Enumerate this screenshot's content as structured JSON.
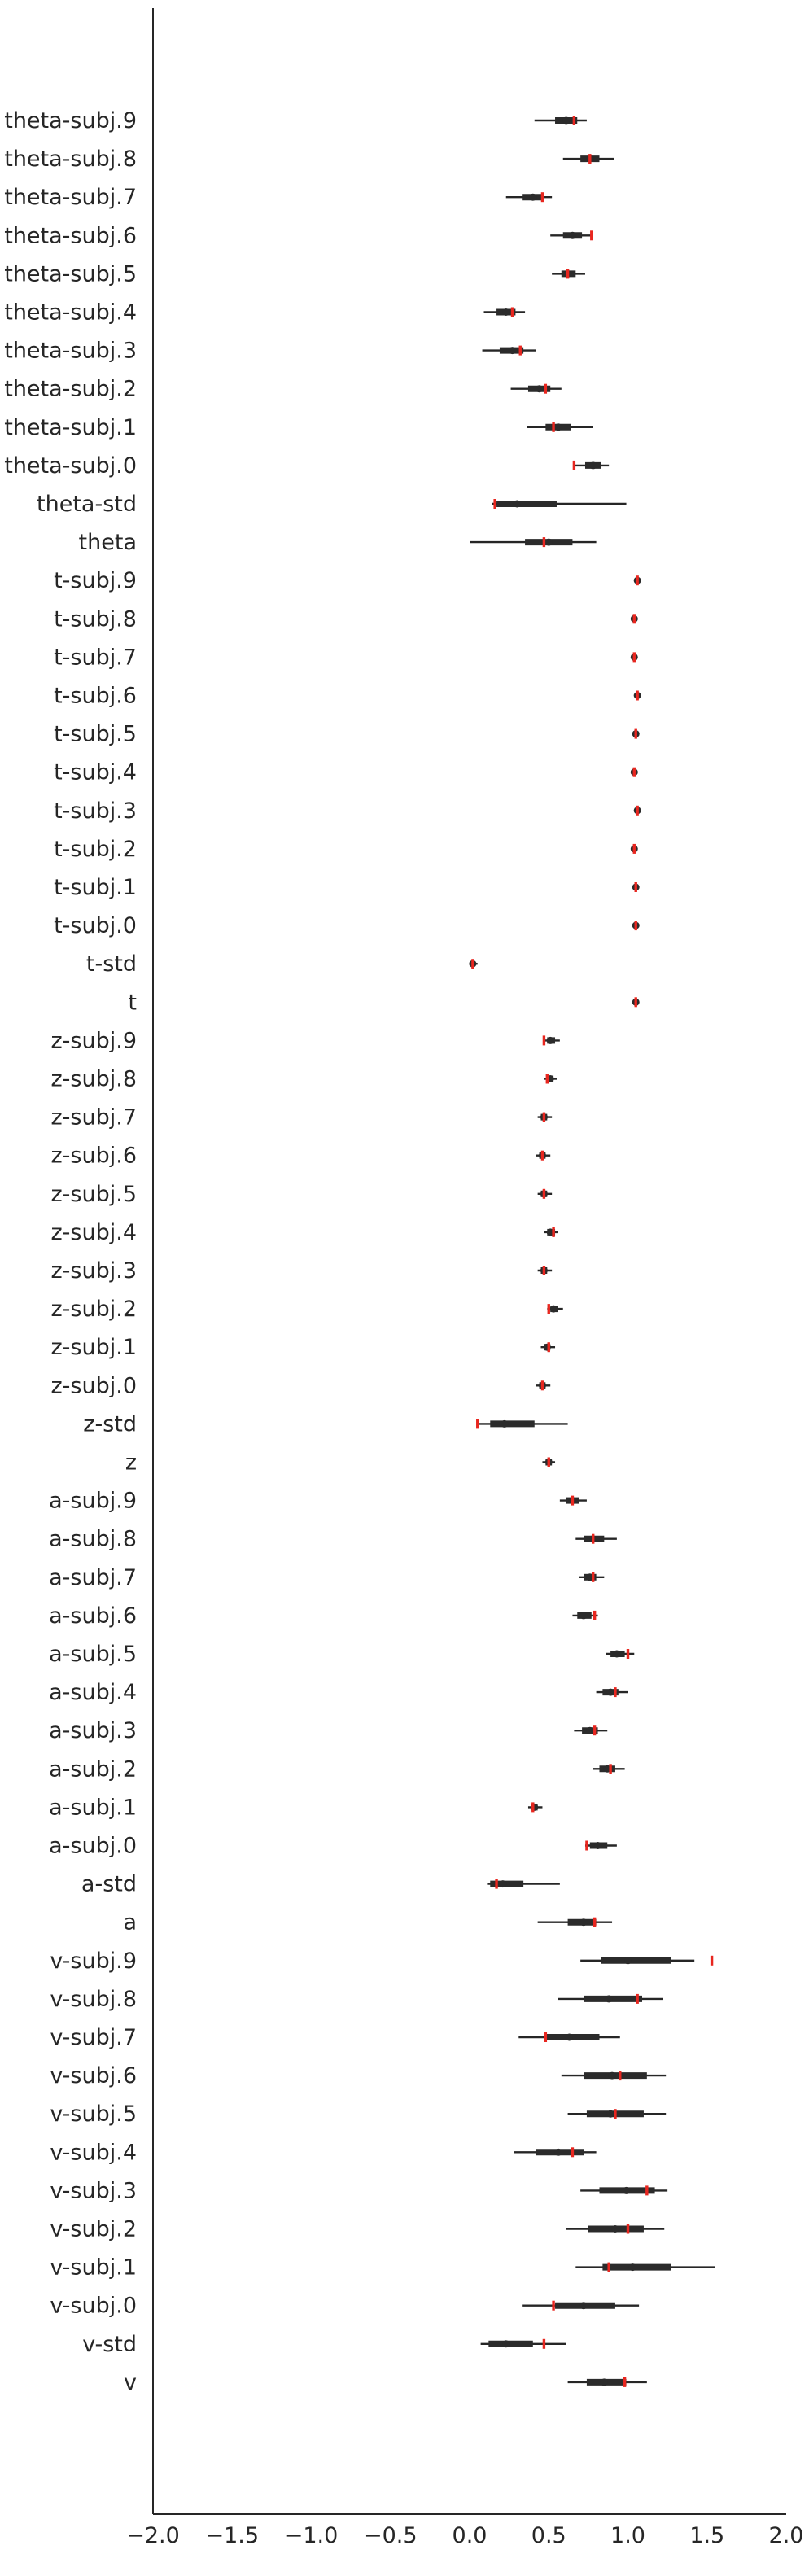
{
  "chart_data": {
    "type": "box",
    "orientation": "horizontal",
    "title": "",
    "xlabel": "",
    "ylabel": "",
    "xlim": [
      -2.0,
      2.0
    ],
    "xticks": [
      -2.0,
      -1.5,
      -1.0,
      -0.5,
      0.0,
      0.5,
      1.0,
      1.5,
      2.0
    ],
    "xtick_labels": [
      "−2.0",
      "−1.5",
      "−1.0",
      "−0.5",
      "0.0",
      "0.5",
      "1.0",
      "1.5",
      "2.0"
    ],
    "grid": false,
    "colors": {
      "box": "#2b2b2b",
      "true_value": "#e8261f",
      "axis": "#262626"
    },
    "parameters": [
      {
        "name": "theta-subj.9",
        "whisker_low": 0.41,
        "q1": 0.54,
        "median": 0.61,
        "q3": 0.68,
        "whisker_high": 0.74,
        "true_value": 0.66
      },
      {
        "name": "theta-subj.8",
        "whisker_low": 0.59,
        "q1": 0.7,
        "median": 0.76,
        "q3": 0.82,
        "whisker_high": 0.91,
        "true_value": 0.76
      },
      {
        "name": "theta-subj.7",
        "whisker_low": 0.23,
        "q1": 0.33,
        "median": 0.4,
        "q3": 0.46,
        "whisker_high": 0.52,
        "true_value": 0.46
      },
      {
        "name": "theta-subj.6",
        "whisker_low": 0.51,
        "q1": 0.59,
        "median": 0.65,
        "q3": 0.71,
        "whisker_high": 0.78,
        "true_value": 0.77
      },
      {
        "name": "theta-subj.5",
        "whisker_low": 0.52,
        "q1": 0.58,
        "median": 0.62,
        "q3": 0.67,
        "whisker_high": 0.73,
        "true_value": 0.62
      },
      {
        "name": "theta-subj.4",
        "whisker_low": 0.09,
        "q1": 0.17,
        "median": 0.23,
        "q3": 0.29,
        "whisker_high": 0.35,
        "true_value": 0.27
      },
      {
        "name": "theta-subj.3",
        "whisker_low": 0.08,
        "q1": 0.19,
        "median": 0.27,
        "q3": 0.34,
        "whisker_high": 0.42,
        "true_value": 0.32
      },
      {
        "name": "theta-subj.2",
        "whisker_low": 0.26,
        "q1": 0.37,
        "median": 0.44,
        "q3": 0.51,
        "whisker_high": 0.58,
        "true_value": 0.48
      },
      {
        "name": "theta-subj.1",
        "whisker_low": 0.36,
        "q1": 0.48,
        "median": 0.56,
        "q3": 0.64,
        "whisker_high": 0.78,
        "true_value": 0.53
      },
      {
        "name": "theta-subj.0",
        "whisker_low": 0.66,
        "q1": 0.73,
        "median": 0.78,
        "q3": 0.83,
        "whisker_high": 0.88,
        "true_value": 0.66
      },
      {
        "name": "theta-std",
        "whisker_low": 0.14,
        "q1": 0.17,
        "median": 0.3,
        "q3": 0.55,
        "whisker_high": 0.99,
        "true_value": 0.16
      },
      {
        "name": "theta",
        "whisker_low": 0.0,
        "q1": 0.35,
        "median": 0.5,
        "q3": 0.65,
        "whisker_high": 0.8,
        "true_value": 0.47
      },
      {
        "name": "t-subj.9",
        "whisker_low": 1.04,
        "q1": 1.05,
        "median": 1.06,
        "q3": 1.07,
        "whisker_high": 1.08,
        "true_value": 1.06
      },
      {
        "name": "t-subj.8",
        "whisker_low": 1.02,
        "q1": 1.03,
        "median": 1.04,
        "q3": 1.05,
        "whisker_high": 1.06,
        "true_value": 1.04
      },
      {
        "name": "t-subj.7",
        "whisker_low": 1.02,
        "q1": 1.03,
        "median": 1.04,
        "q3": 1.05,
        "whisker_high": 1.06,
        "true_value": 1.04
      },
      {
        "name": "t-subj.6",
        "whisker_low": 1.04,
        "q1": 1.05,
        "median": 1.06,
        "q3": 1.07,
        "whisker_high": 1.08,
        "true_value": 1.06
      },
      {
        "name": "t-subj.5",
        "whisker_low": 1.03,
        "q1": 1.04,
        "median": 1.05,
        "q3": 1.06,
        "whisker_high": 1.07,
        "true_value": 1.05
      },
      {
        "name": "t-subj.4",
        "whisker_low": 1.02,
        "q1": 1.03,
        "median": 1.04,
        "q3": 1.05,
        "whisker_high": 1.06,
        "true_value": 1.04
      },
      {
        "name": "t-subj.3",
        "whisker_low": 1.04,
        "q1": 1.05,
        "median": 1.06,
        "q3": 1.07,
        "whisker_high": 1.08,
        "true_value": 1.06
      },
      {
        "name": "t-subj.2",
        "whisker_low": 1.02,
        "q1": 1.03,
        "median": 1.04,
        "q3": 1.05,
        "whisker_high": 1.06,
        "true_value": 1.04
      },
      {
        "name": "t-subj.1",
        "whisker_low": 1.03,
        "q1": 1.04,
        "median": 1.05,
        "q3": 1.06,
        "whisker_high": 1.07,
        "true_value": 1.05
      },
      {
        "name": "t-subj.0",
        "whisker_low": 1.03,
        "q1": 1.04,
        "median": 1.05,
        "q3": 1.06,
        "whisker_high": 1.07,
        "true_value": 1.05
      },
      {
        "name": "t-std",
        "whisker_low": 0.0,
        "q1": 0.01,
        "median": 0.02,
        "q3": 0.03,
        "whisker_high": 0.05,
        "true_value": 0.02
      },
      {
        "name": "t",
        "whisker_low": 1.03,
        "q1": 1.04,
        "median": 1.05,
        "q3": 1.06,
        "whisker_high": 1.07,
        "true_value": 1.05
      },
      {
        "name": "z-subj.9",
        "whisker_low": 0.47,
        "q1": 0.49,
        "median": 0.51,
        "q3": 0.54,
        "whisker_high": 0.57,
        "true_value": 0.47
      },
      {
        "name": "z-subj.8",
        "whisker_low": 0.47,
        "q1": 0.49,
        "median": 0.51,
        "q3": 0.53,
        "whisker_high": 0.55,
        "true_value": 0.49
      },
      {
        "name": "z-subj.7",
        "whisker_low": 0.43,
        "q1": 0.45,
        "median": 0.47,
        "q3": 0.49,
        "whisker_high": 0.52,
        "true_value": 0.47
      },
      {
        "name": "z-subj.6",
        "whisker_low": 0.42,
        "q1": 0.44,
        "median": 0.46,
        "q3": 0.48,
        "whisker_high": 0.51,
        "true_value": 0.46
      },
      {
        "name": "z-subj.5",
        "whisker_low": 0.43,
        "q1": 0.45,
        "median": 0.47,
        "q3": 0.49,
        "whisker_high": 0.52,
        "true_value": 0.47
      },
      {
        "name": "z-subj.4",
        "whisker_low": 0.47,
        "q1": 0.49,
        "median": 0.51,
        "q3": 0.54,
        "whisker_high": 0.56,
        "true_value": 0.53
      },
      {
        "name": "z-subj.3",
        "whisker_low": 0.43,
        "q1": 0.45,
        "median": 0.47,
        "q3": 0.49,
        "whisker_high": 0.52,
        "true_value": 0.47
      },
      {
        "name": "z-subj.2",
        "whisker_low": 0.49,
        "q1": 0.51,
        "median": 0.53,
        "q3": 0.56,
        "whisker_high": 0.59,
        "true_value": 0.5
      },
      {
        "name": "z-subj.1",
        "whisker_low": 0.45,
        "q1": 0.47,
        "median": 0.49,
        "q3": 0.51,
        "whisker_high": 0.54,
        "true_value": 0.5
      },
      {
        "name": "z-subj.0",
        "whisker_low": 0.42,
        "q1": 0.44,
        "median": 0.46,
        "q3": 0.48,
        "whisker_high": 0.51,
        "true_value": 0.46
      },
      {
        "name": "z-std",
        "whisker_low": 0.06,
        "q1": 0.13,
        "median": 0.22,
        "q3": 0.41,
        "whisker_high": 0.62,
        "true_value": 0.05
      },
      {
        "name": "z",
        "whisker_low": 0.46,
        "q1": 0.48,
        "median": 0.5,
        "q3": 0.52,
        "whisker_high": 0.54,
        "true_value": 0.5
      },
      {
        "name": "a-subj.9",
        "whisker_low": 0.57,
        "q1": 0.61,
        "median": 0.65,
        "q3": 0.69,
        "whisker_high": 0.74,
        "true_value": 0.65
      },
      {
        "name": "a-subj.8",
        "whisker_low": 0.67,
        "q1": 0.72,
        "median": 0.78,
        "q3": 0.85,
        "whisker_high": 0.93,
        "true_value": 0.78
      },
      {
        "name": "a-subj.7",
        "whisker_low": 0.69,
        "q1": 0.72,
        "median": 0.76,
        "q3": 0.8,
        "whisker_high": 0.85,
        "true_value": 0.78
      },
      {
        "name": "a-subj.6",
        "whisker_low": 0.65,
        "q1": 0.68,
        "median": 0.72,
        "q3": 0.77,
        "whisker_high": 0.81,
        "true_value": 0.79
      },
      {
        "name": "a-subj.5",
        "whisker_low": 0.86,
        "q1": 0.89,
        "median": 0.93,
        "q3": 0.98,
        "whisker_high": 1.04,
        "true_value": 1.0
      },
      {
        "name": "a-subj.4",
        "whisker_low": 0.8,
        "q1": 0.84,
        "median": 0.89,
        "q3": 0.94,
        "whisker_high": 1.0,
        "true_value": 0.92
      },
      {
        "name": "a-subj.3",
        "whisker_low": 0.66,
        "q1": 0.71,
        "median": 0.76,
        "q3": 0.81,
        "whisker_high": 0.87,
        "true_value": 0.79
      },
      {
        "name": "a-subj.2",
        "whisker_low": 0.78,
        "q1": 0.82,
        "median": 0.87,
        "q3": 0.92,
        "whisker_high": 0.98,
        "true_value": 0.89
      },
      {
        "name": "a-subj.1",
        "whisker_low": 0.37,
        "q1": 0.39,
        "median": 0.41,
        "q3": 0.43,
        "whisker_high": 0.46,
        "true_value": 0.4
      },
      {
        "name": "a-subj.0",
        "whisker_low": 0.73,
        "q1": 0.76,
        "median": 0.81,
        "q3": 0.87,
        "whisker_high": 0.93,
        "true_value": 0.74
      },
      {
        "name": "a-std",
        "whisker_low": 0.11,
        "q1": 0.13,
        "median": 0.21,
        "q3": 0.34,
        "whisker_high": 0.57,
        "true_value": 0.17
      },
      {
        "name": "a",
        "whisker_low": 0.43,
        "q1": 0.62,
        "median": 0.72,
        "q3": 0.8,
        "whisker_high": 0.9,
        "true_value": 0.79
      },
      {
        "name": "v-subj.9",
        "whisker_low": 0.7,
        "q1": 0.83,
        "median": 1.0,
        "q3": 1.27,
        "whisker_high": 1.42,
        "true_value": 1.53
      },
      {
        "name": "v-subj.8",
        "whisker_low": 0.56,
        "q1": 0.72,
        "median": 0.88,
        "q3": 1.09,
        "whisker_high": 1.22,
        "true_value": 1.06
      },
      {
        "name": "v-subj.7",
        "whisker_low": 0.31,
        "q1": 0.47,
        "median": 0.63,
        "q3": 0.82,
        "whisker_high": 0.95,
        "true_value": 0.48
      },
      {
        "name": "v-subj.6",
        "whisker_low": 0.58,
        "q1": 0.72,
        "median": 0.9,
        "q3": 1.12,
        "whisker_high": 1.24,
        "true_value": 0.95
      },
      {
        "name": "v-subj.5",
        "whisker_low": 0.62,
        "q1": 0.74,
        "median": 0.89,
        "q3": 1.1,
        "whisker_high": 1.24,
        "true_value": 0.92
      },
      {
        "name": "v-subj.4",
        "whisker_low": 0.28,
        "q1": 0.42,
        "median": 0.56,
        "q3": 0.72,
        "whisker_high": 0.8,
        "true_value": 0.65
      },
      {
        "name": "v-subj.3",
        "whisker_low": 0.7,
        "q1": 0.82,
        "median": 0.99,
        "q3": 1.17,
        "whisker_high": 1.25,
        "true_value": 1.12
      },
      {
        "name": "v-subj.2",
        "whisker_low": 0.61,
        "q1": 0.75,
        "median": 0.92,
        "q3": 1.1,
        "whisker_high": 1.23,
        "true_value": 1.0
      },
      {
        "name": "v-subj.1",
        "whisker_low": 0.67,
        "q1": 0.84,
        "median": 1.03,
        "q3": 1.27,
        "whisker_high": 1.55,
        "true_value": 0.88
      },
      {
        "name": "v-subj.0",
        "whisker_low": 0.33,
        "q1": 0.54,
        "median": 0.72,
        "q3": 0.92,
        "whisker_high": 1.07,
        "true_value": 0.53
      },
      {
        "name": "v-std",
        "whisker_low": 0.07,
        "q1": 0.12,
        "median": 0.23,
        "q3": 0.4,
        "whisker_high": 0.61,
        "true_value": 0.47
      },
      {
        "name": "v",
        "whisker_low": 0.62,
        "q1": 0.74,
        "median": 0.85,
        "q3": 0.99,
        "whisker_high": 1.12,
        "true_value": 0.98
      }
    ]
  }
}
